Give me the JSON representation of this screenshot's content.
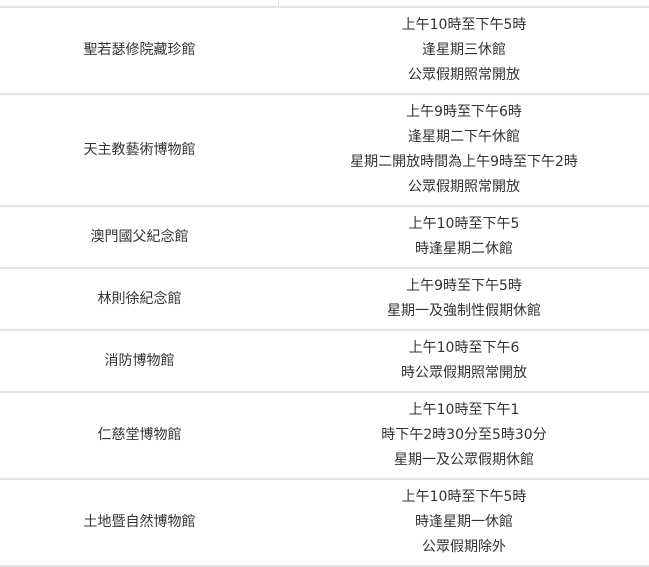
{
  "rows": [
    {
      "name": "聖若瑟修院藏珍館",
      "hours": [
        "上午10時至下午5時",
        "逢星期三休館",
        "公眾假期照常開放"
      ]
    },
    {
      "name": "天主教藝術博物館",
      "hours": [
        "上午9時至下午6時",
        "逢星期二下午休館",
        "星期二開放時間為上午9時至下午2時",
        "公眾假期照常開放"
      ]
    },
    {
      "name": "澳門國父紀念館",
      "hours": [
        "上午10時至下午5",
        "時逢星期二休館"
      ]
    },
    {
      "name": "林則徐紀念館",
      "hours": [
        "上午9時至下午5時",
        "星期一及強制性假期休館"
      ]
    },
    {
      "name": "消防博物館",
      "hours": [
        "上午10時至下午6",
        "時公眾假期照常開放"
      ]
    },
    {
      "name": "仁慈堂博物館",
      "hours": [
        "上午10時至下午1",
        "時下午2時30分至5時30分",
        "星期一及公眾假期休館"
      ]
    },
    {
      "name": "土地暨自然博物館",
      "hours": [
        "上午10時至下午5時",
        "時逢星期一休館",
        "公眾假期除外"
      ]
    }
  ]
}
